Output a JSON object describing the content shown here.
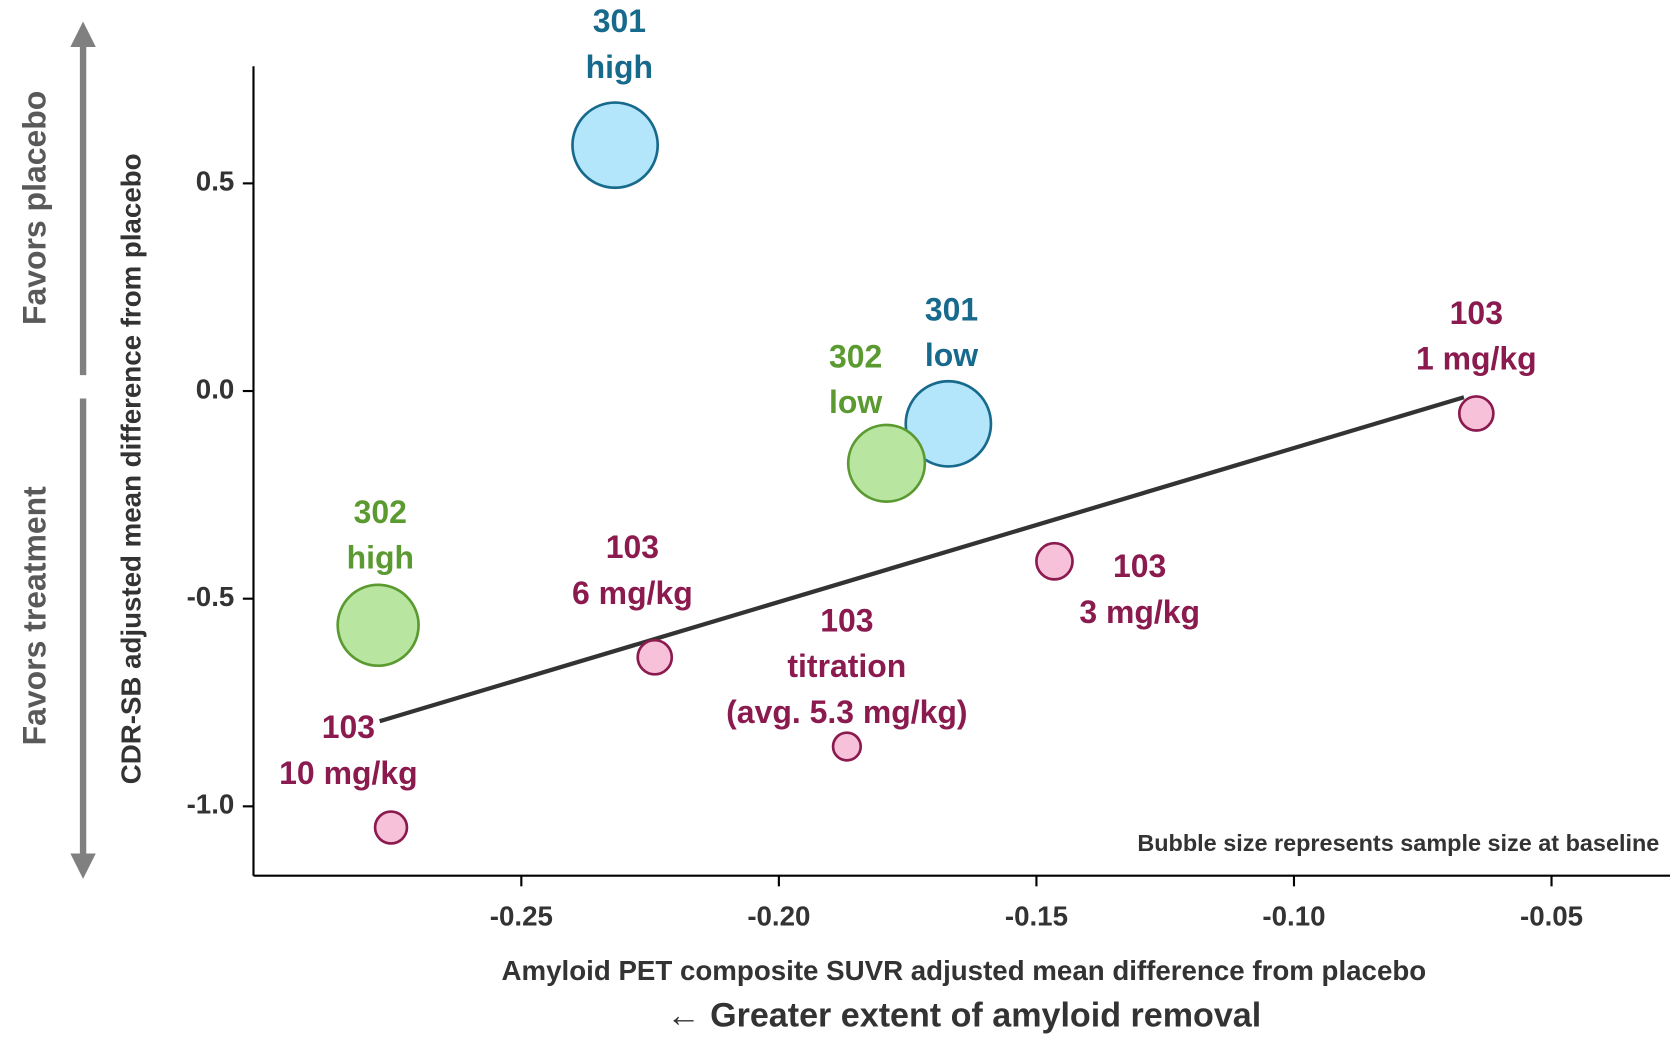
{
  "chart_data": {
    "type": "bubble",
    "x_label": "Amyloid PET composite SUVR adjusted mean difference from placebo",
    "x_label_2": "← Greater extent of amyloid removal",
    "y_label": "CDR-SB adjusted mean difference from placebo",
    "favors_top": "Favors placebo",
    "favors_bottom": "Favors treatment",
    "note": "Bubble size represents sample size at baseline",
    "xlim": [
      -0.302,
      -0.027
    ],
    "ylim": [
      -1.167,
      0.782
    ],
    "xticks": [
      -0.25,
      {
        "value": -0.2,
        "label": "-0.20"
      },
      -0.15,
      {
        "value": -0.1,
        "label": "-0.10"
      },
      -0.05
    ],
    "yticks": [
      0.5,
      {
        "value": 0,
        "label": "0.0"
      },
      -0.5,
      {
        "value": -1,
        "label": "-1.0"
      }
    ],
    "points": [
      {
        "label": [
          "301",
          "high"
        ],
        "x": -0.2318,
        "y": 0.592,
        "size": 550,
        "color": "#176a8c",
        "fill": "#b3e5fb"
      },
      {
        "label": [
          "301",
          "low"
        ],
        "x": -0.1671,
        "y": -0.079,
        "size": 550,
        "color": "#176a8c",
        "fill": "#b3e5fb"
      },
      {
        "label": [
          "302",
          "low"
        ],
        "x": -0.1791,
        "y": -0.174,
        "size": 445,
        "color": "#5a9a30",
        "fill": "#b8e6a0"
      },
      {
        "label": [
          "302",
          "high"
        ],
        "x": -0.2778,
        "y": -0.564,
        "size": 496,
        "color": "#5a9a30",
        "fill": "#b8e6a0"
      },
      {
        "label": [
          "103",
          "1 mg/kg"
        ],
        "x": -0.0646,
        "y": -0.054,
        "size": 88,
        "color": "#8b1a4f",
        "fill": "#f7c1d9"
      },
      {
        "label": [
          "103",
          "3 mg/kg"
        ],
        "x": -0.1465,
        "y": -0.41,
        "size": 99,
        "color": "#8b1a4f",
        "fill": "#f7c1d9"
      },
      {
        "label": [
          "103",
          "6 mg/kg"
        ],
        "x": -0.2241,
        "y": -0.641,
        "size": 88,
        "color": "#8b1a4f",
        "fill": "#f7c1d9"
      },
      {
        "label": [
          "103",
          "titration",
          "(avg. 5.3 mg/kg)"
        ],
        "x": -0.1868,
        "y": -0.856,
        "size": 58,
        "color": "#8b1a4f",
        "fill": "#f7c1d9"
      },
      {
        "label": [
          "103",
          "10 mg/kg"
        ],
        "x": -0.2753,
        "y": -1.051,
        "size": 77,
        "color": "#8b1a4f",
        "fill": "#f7c1d9"
      }
    ],
    "trendline": {
      "x": [
        -0.2775,
        -0.067
      ],
      "y": [
        -0.795,
        -0.015
      ],
      "color": "#333333"
    }
  }
}
